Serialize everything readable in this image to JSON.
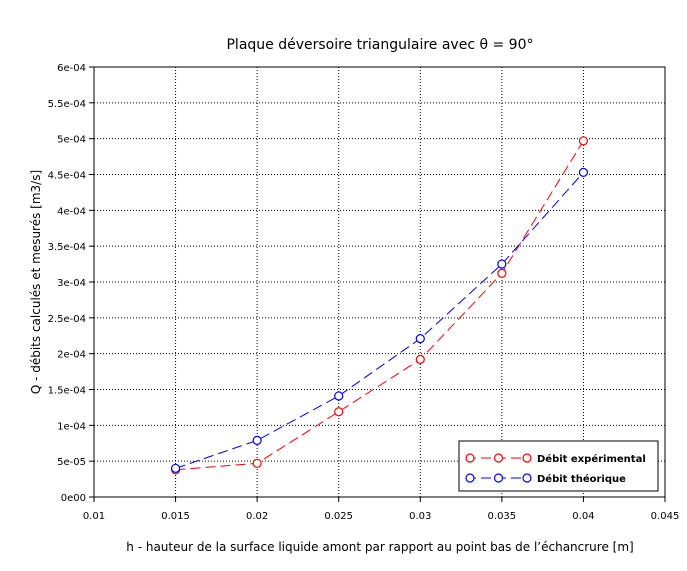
{
  "chart_data": {
    "type": "line",
    "title": "Plaque déversoire triangulaire avec θ = 90°",
    "xlabel": "h - hauteur de la surface liquide amont par rapport au point bas de l’échancrure [m]",
    "ylabel": "Q - débits calculés et mesurés [m3/s]",
    "xlim": [
      0.01,
      0.045
    ],
    "ylim": [
      0,
      0.0006
    ],
    "x_ticks": [
      0.01,
      0.015,
      0.02,
      0.025,
      0.03,
      0.035,
      0.04,
      0.045
    ],
    "x_tick_labels": [
      "0.01",
      "0.015",
      "0.02",
      "0.025",
      "0.03",
      "0.035",
      "0.04",
      "0.045"
    ],
    "y_ticks": [
      0,
      5e-05,
      0.0001,
      0.00015,
      0.0002,
      0.00025,
      0.0003,
      0.00035,
      0.0004,
      0.00045,
      0.0005,
      0.00055,
      0.0006
    ],
    "y_tick_labels": [
      "0e00",
      "5e-05",
      "1e-04",
      "1.5e-04",
      "2e-04",
      "2.5e-04",
      "3e-04",
      "3.5e-04",
      "4e-04",
      "4.5e-04",
      "5e-04",
      "5.5e-04",
      "6e-04"
    ],
    "grid": true,
    "legend_position": "bottom-right",
    "x": [
      0.015,
      0.02,
      0.025,
      0.03,
      0.035,
      0.04
    ],
    "series": [
      {
        "name": "Débit expérimental",
        "color": "#ff0000",
        "line_style": "dashed",
        "marker": "circle",
        "values": [
          3.8e-05,
          4.7e-05,
          0.000119,
          0.000192,
          0.000312,
          0.000497
        ]
      },
      {
        "name": "Débit théorique",
        "color": "#0000ff",
        "line_style": "dashed",
        "marker": "circle",
        "values": [
          4e-05,
          7.9e-05,
          0.000141,
          0.000221,
          0.000325,
          0.000453
        ]
      }
    ]
  }
}
